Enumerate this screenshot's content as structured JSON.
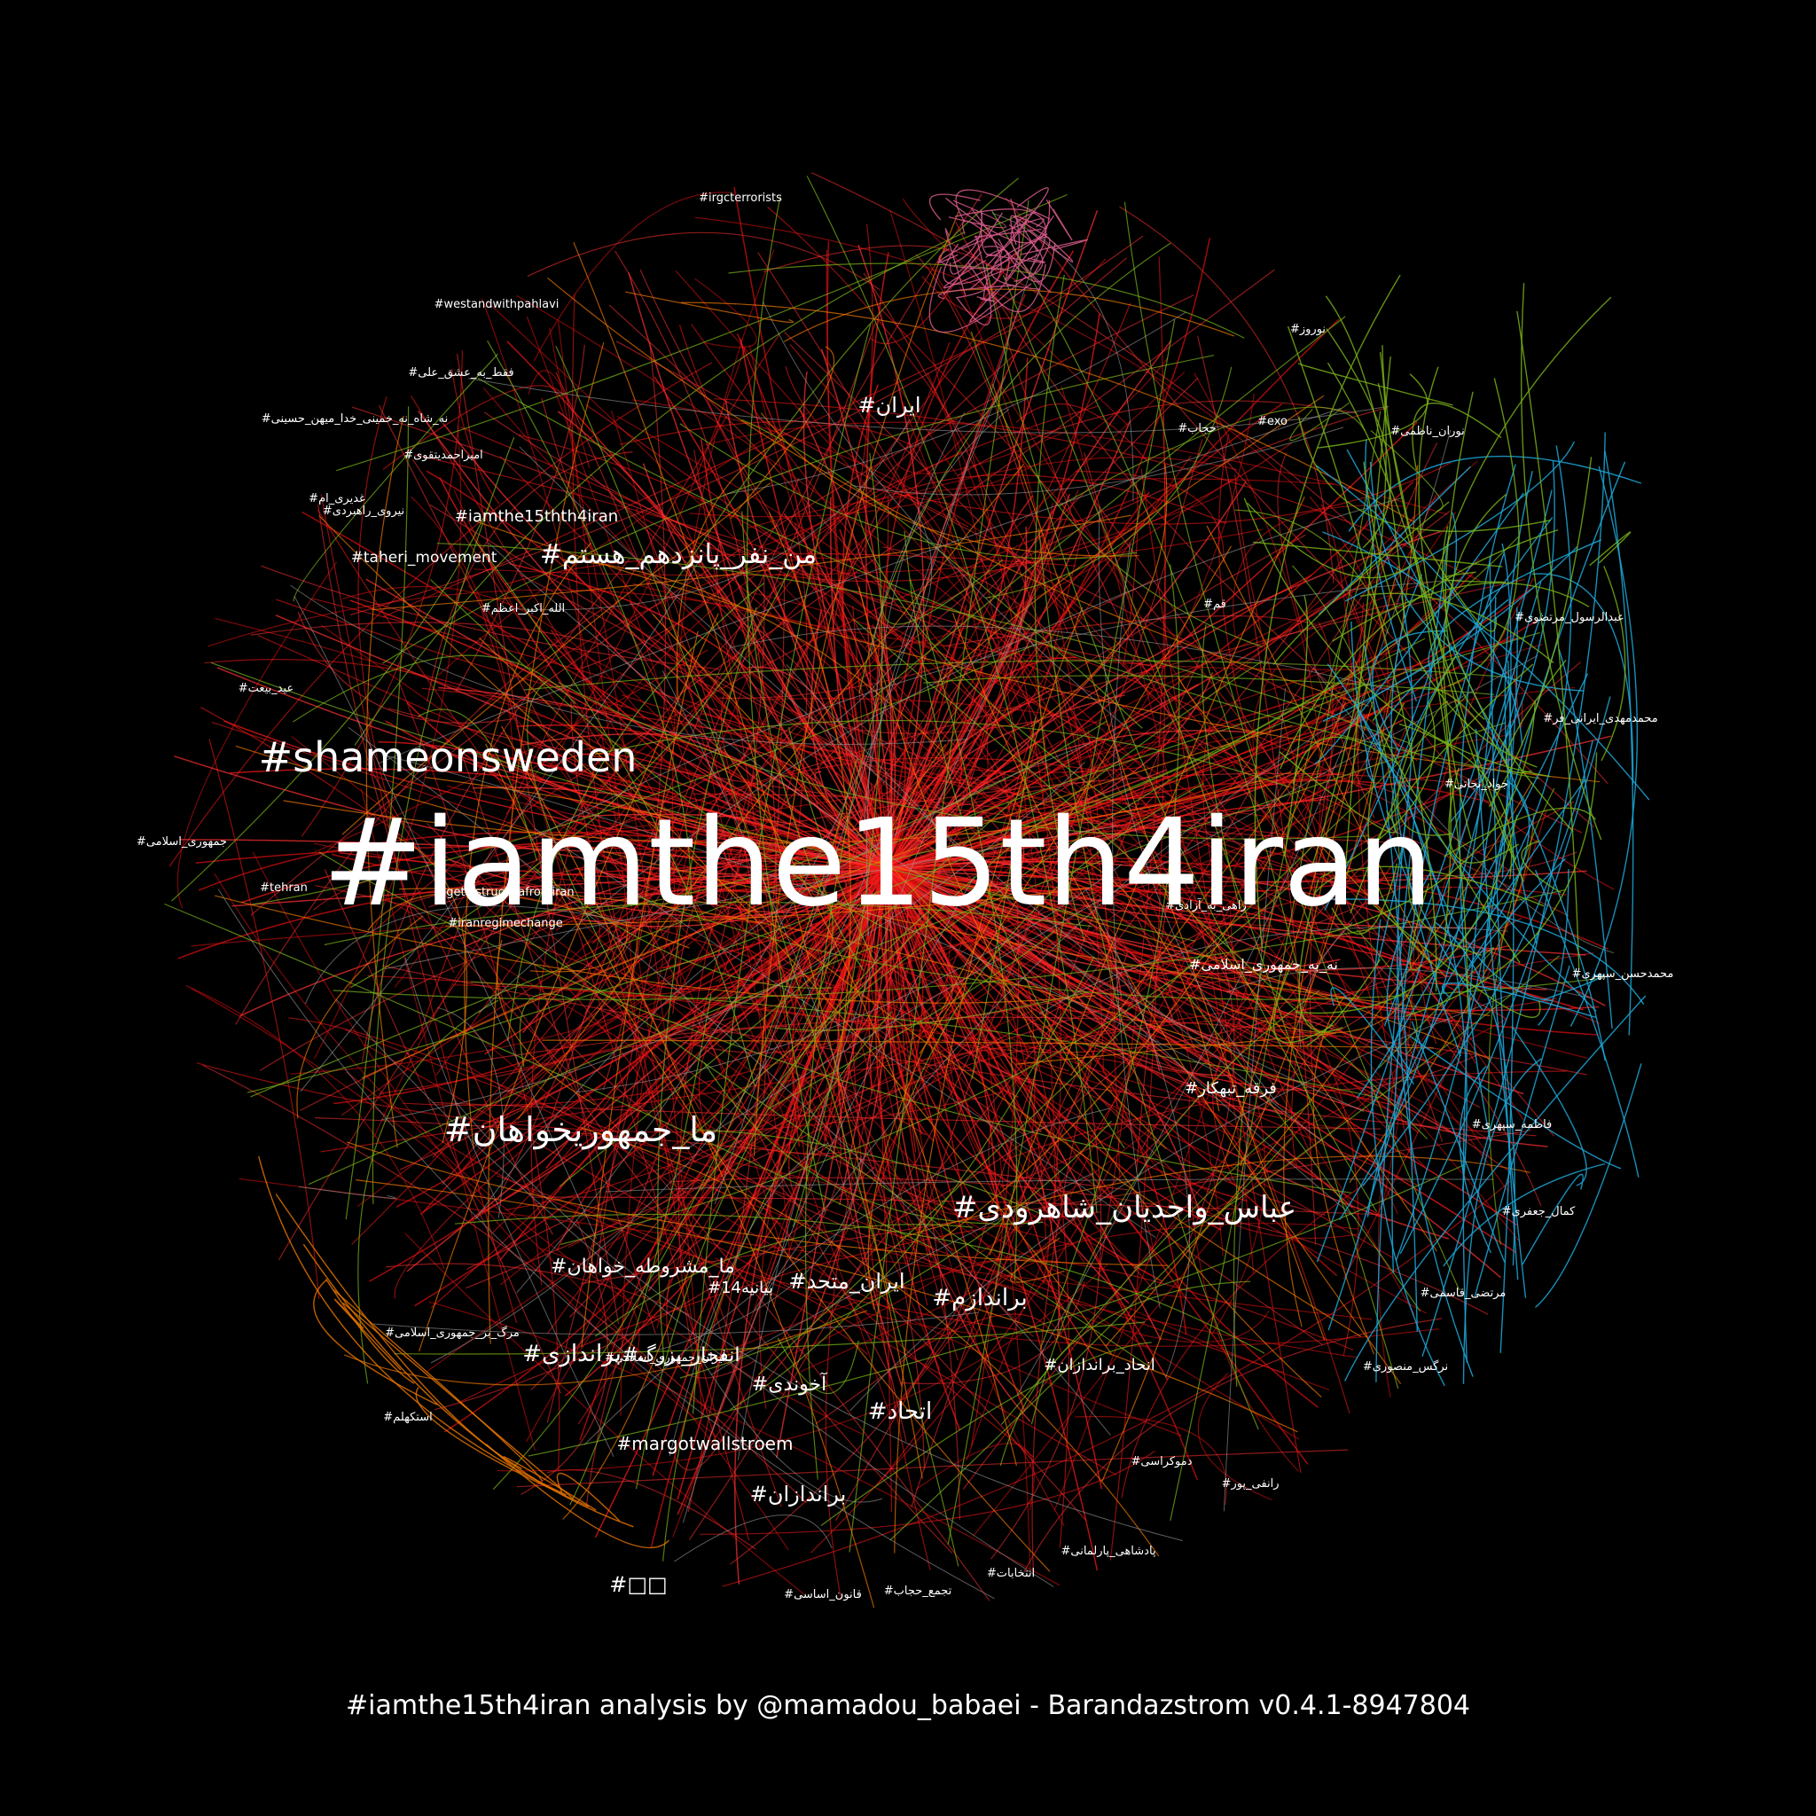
{
  "graph": {
    "edge_colors": [
      "#ff1a1a",
      "#e01010",
      "#ff3030",
      "#7cb518",
      "#f07800",
      "#1ca8d8",
      "#d85a8a",
      "#9a9a9a",
      "#c0392b"
    ],
    "hub_label": "#iamthe15th4iran",
    "secondary_labels": [
      "#shameonsweden",
      "#ما_جمهوریخواهان",
      "#عباس_واحدیان_شاهرودی",
      "#من_نفر_پانزدهم_هستم"
    ],
    "medium_labels": [
      "#ایران",
      "#ایران_متحد",
      "#براندازم",
      "#ما_مشروطه_خواهان",
      "#براندازی",
      "#انفجار_بزرگ",
      "#اتحاد",
      "#آخوندی",
      "#براندازان",
      "#iamthe15thth4iran",
      "#taheri_movement",
      "#margotwallstroem",
      "#بیانیه14",
      "#انحاد_براندازان",
      "#فرقه_تبهکار",
      "#نه_به_جمهوری_اسلامی"
    ],
    "small_labels": [
      "#irgcterrorists",
      "#westandwithpahlavi",
      "#iranregimechange",
      "#exo",
      "#getlostructsiafromiran",
      "#tehran",
      "#قم",
      "#ایران_جمهوری_اسلامی",
      "#جمهوری_اسلامی",
      "#عید_بیعت",
      "#امیراحمدیتقوی",
      "#غدیری_ام",
      "#فقط_به_عشق_علی",
      "#نه_شاه_نه_خمینی_خدا_میهن_حسینی",
      "#نیروی_راهبردی",
      "#حجاب",
      "#نوروز",
      "#نوران_ناظمی",
      "#عبدالرسول_مرتضوی",
      "#محمدمهدی_ایرانی_فر",
      "#جواد_نجاتی",
      "#محمدحسن_سپهری",
      "#فاطمه_سپهری",
      "#مرتضی_قاسمی",
      "#نرگس_منصوری",
      "#کمال_جعفری",
      "#پادشاهی_پارلمانی",
      "#انتخابات",
      "#تجمع_حجاب",
      "#قانون_اساسی",
      "#رانفی_پور",
      "#دموکراسی",
      "#مرگ_بر_جمهوری_اسلامی",
      "#استکهلم",
      "#راهی_به_آزادی",
      "#الله_اکبر_اعظم"
    ],
    "big_center_hashtag": "#□□"
  },
  "caption": "#iamthe15th4iran analysis by @mamadou_babaei - Barandazstrom v0.4.1-8947804"
}
